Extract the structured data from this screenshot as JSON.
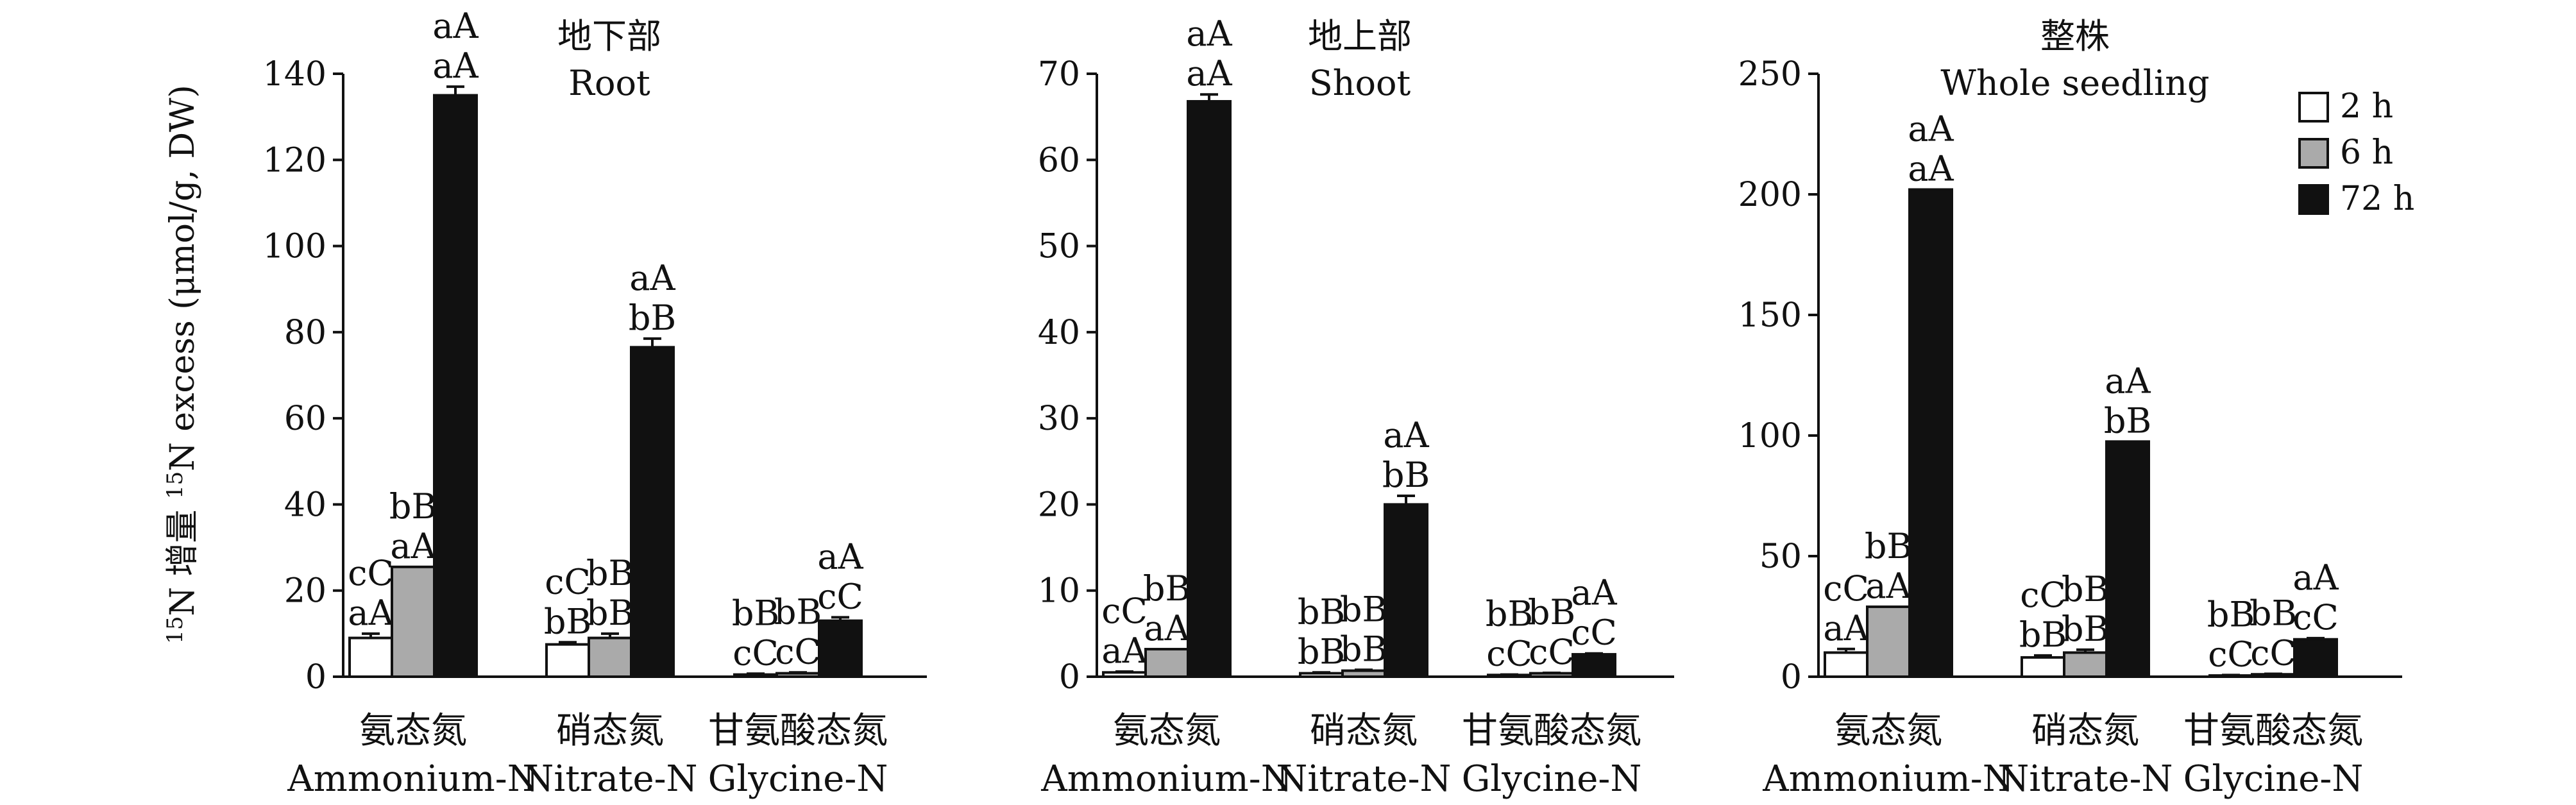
{
  "figure": {
    "y_axis_label": {
      "sup": "15",
      "mid": "N 增量 ",
      "sup2": "15",
      "tail": "N excess (μmol/g, DW)"
    },
    "categories": [
      {
        "cn": "氨态氮",
        "en": "Ammonium-N"
      },
      {
        "cn": "硝态氮",
        "en": "Nitrate-N"
      },
      {
        "cn": "甘氨酸态氮",
        "en": "Glycine-N"
      }
    ],
    "legend": [
      {
        "label": "2 h",
        "color": "#ffffff"
      },
      {
        "label": "6 h",
        "color": "#aaaaaa"
      },
      {
        "label": "72 h",
        "color": "#111111"
      }
    ]
  },
  "chart_data": [
    {
      "type": "bar",
      "title": "地下部",
      "subtitle": "Root",
      "ylim": [
        0,
        140
      ],
      "yticks": [
        0,
        20,
        40,
        60,
        80,
        100,
        120,
        140
      ],
      "categories": [
        "Ammonium-N",
        "Nitrate-N",
        "Glycine-N"
      ],
      "series": [
        {
          "name": "2 h",
          "values": [
            9,
            7.5,
            0.5
          ],
          "errors": [
            1,
            0.5,
            0.2
          ],
          "labels": [
            [
              "cC",
              "aA"
            ],
            [
              "cC",
              "bB"
            ],
            [
              "bB",
              "cC"
            ]
          ]
        },
        {
          "name": "6 h",
          "values": [
            25.5,
            9,
            0.8
          ],
          "errors": [
            0,
            1,
            0.2
          ],
          "labels": [
            [
              "bB",
              "aA"
            ],
            [
              "bB",
              "bB"
            ],
            [
              "bB",
              "cC"
            ]
          ]
        },
        {
          "name": "72 h",
          "values": [
            135,
            76.5,
            13
          ],
          "errors": [
            2,
            2,
            0.8
          ],
          "labels": [
            [
              "aA",
              "aA"
            ],
            [
              "aA",
              "bB"
            ],
            [
              "aA",
              "cC"
            ]
          ]
        }
      ]
    },
    {
      "type": "bar",
      "title": "地上部",
      "subtitle": "Shoot",
      "ylim": [
        0,
        70
      ],
      "yticks": [
        0,
        10,
        20,
        30,
        40,
        50,
        60,
        70
      ],
      "categories": [
        "Ammonium-N",
        "Nitrate-N",
        "Glycine-N"
      ],
      "series": [
        {
          "name": "2 h",
          "values": [
            0.5,
            0.4,
            0.2
          ],
          "errors": [
            0.1,
            0.1,
            0.05
          ],
          "labels": [
            [
              "cC",
              "aA"
            ],
            [
              "bB",
              "bB"
            ],
            [
              "bB",
              "cC"
            ]
          ]
        },
        {
          "name": "6 h",
          "values": [
            3.2,
            0.7,
            0.4
          ],
          "errors": [
            0,
            0.1,
            0.05
          ],
          "labels": [
            [
              "bB",
              "aA"
            ],
            [
              "bB",
              "bB"
            ],
            [
              "bB",
              "cC"
            ]
          ]
        },
        {
          "name": "72 h",
          "values": [
            66.8,
            20,
            2.6
          ],
          "errors": [
            0.8,
            1,
            0.1
          ],
          "labels": [
            [
              "aA",
              "aA"
            ],
            [
              "aA",
              "bB"
            ],
            [
              "aA",
              "cC"
            ]
          ]
        }
      ]
    },
    {
      "type": "bar",
      "title": "整株",
      "subtitle": "Whole seedling",
      "ylim": [
        0,
        250
      ],
      "yticks": [
        0,
        50,
        100,
        150,
        200,
        250
      ],
      "categories": [
        "Ammonium-N",
        "Nitrate-N",
        "Glycine-N"
      ],
      "legend_position": "top-right",
      "series": [
        {
          "name": "2 h",
          "values": [
            10,
            8,
            0.5
          ],
          "errors": [
            1.5,
            0.8,
            0.2
          ],
          "labels": [
            [
              "cC",
              "aA"
            ],
            [
              "cC",
              "bB"
            ],
            [
              "bB",
              "cC"
            ]
          ]
        },
        {
          "name": "6 h",
          "values": [
            29,
            10,
            1
          ],
          "errors": [
            0,
            1.2,
            0.2
          ],
          "labels": [
            [
              "bB",
              "aA"
            ],
            [
              "bB",
              "bB"
            ],
            [
              "bB",
              "cC"
            ]
          ]
        },
        {
          "name": "72 h",
          "values": [
            202,
            97.5,
            15.5
          ],
          "errors": [
            0,
            0,
            0.5
          ],
          "labels": [
            [
              "aA",
              "aA"
            ],
            [
              "aA",
              "bB"
            ],
            [
              "aA",
              "cC"
            ]
          ]
        }
      ]
    }
  ]
}
